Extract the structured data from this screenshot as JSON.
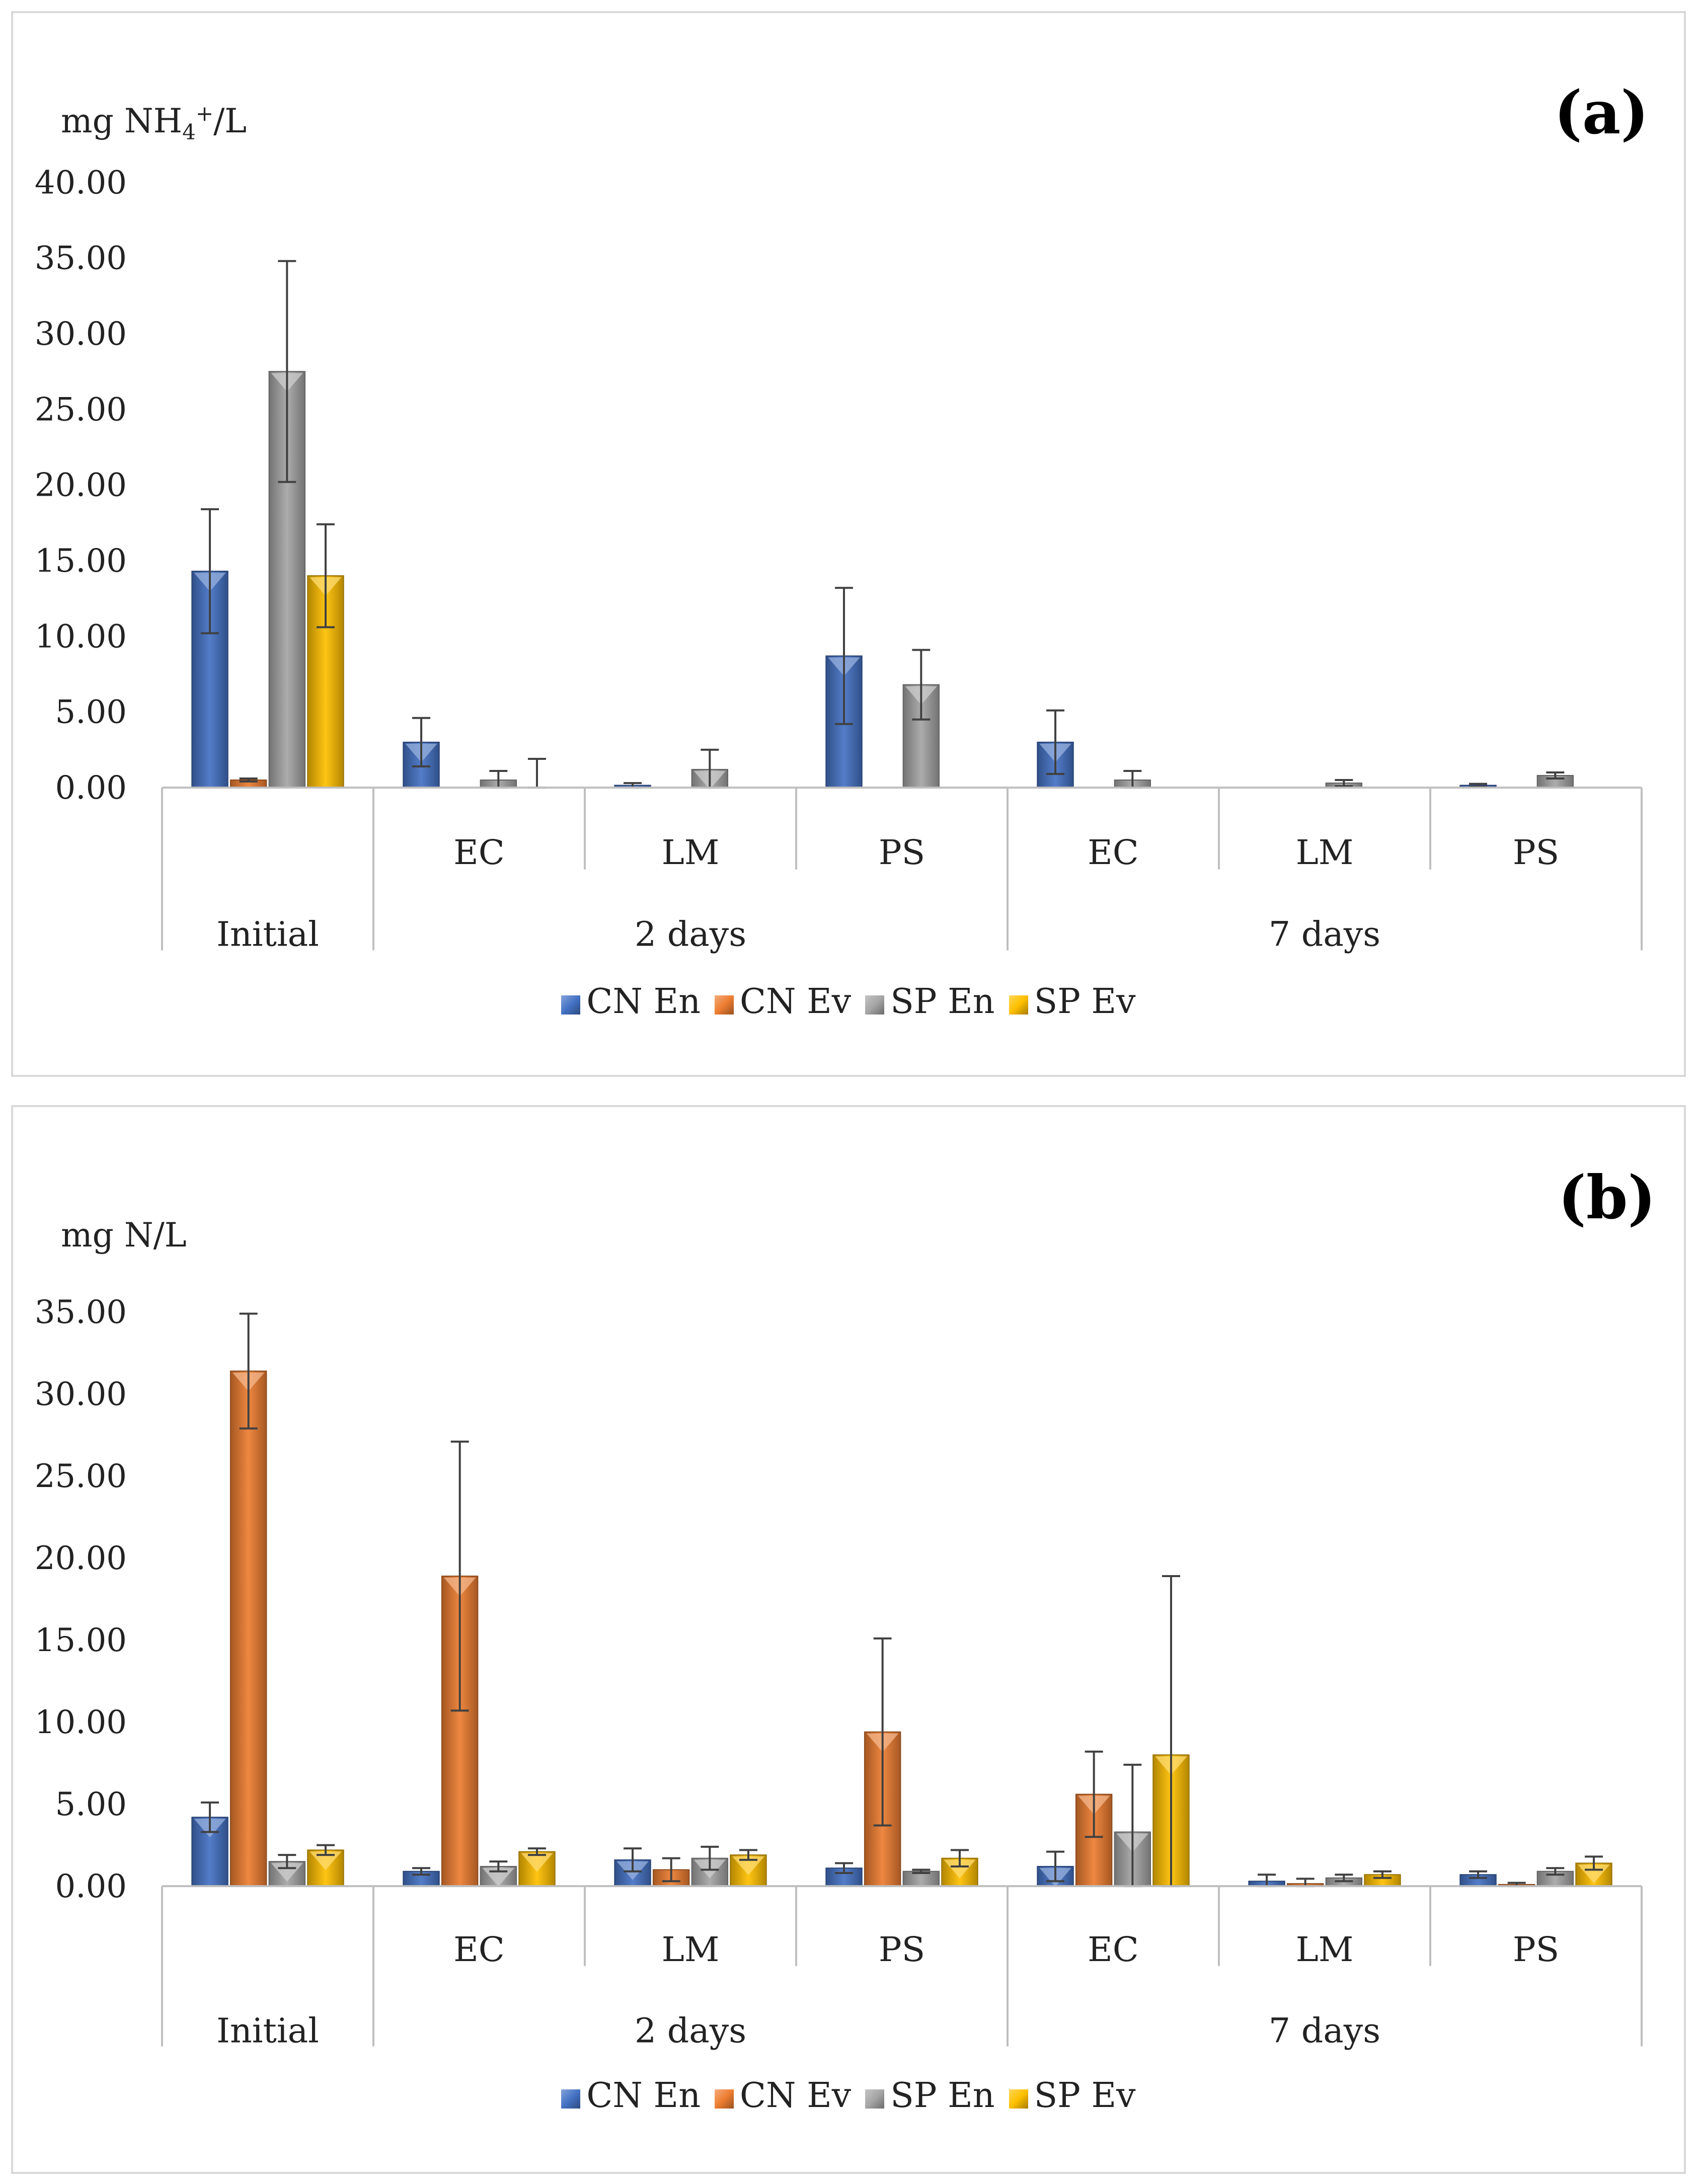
{
  "chart_data": [
    {
      "type": "bar",
      "panel_label": "(a)",
      "ylabel_main": "mg NH",
      "ylabel_sub": "4",
      "ylabel_sup": "+",
      "ylabel_tail": "/L",
      "ylim": [
        0,
        40
      ],
      "y_ticks": [
        "0.00",
        "5.00",
        "10.00",
        "15.00",
        "20.00",
        "25.00",
        "30.00",
        "35.00",
        "40.00"
      ],
      "categories": [
        "",
        "EC",
        "LM",
        "PS",
        "EC",
        "LM",
        "PS"
      ],
      "groups": [
        {
          "label": "Initial",
          "span": 1
        },
        {
          "label": "2 days",
          "span": 3
        },
        {
          "label": "7 days",
          "span": 3
        }
      ],
      "legend_position": "bottom",
      "series": [
        {
          "name": "CN En",
          "color": "#4472c4",
          "values": [
            14.3,
            3.0,
            0.15,
            8.7,
            3.0,
            0.0,
            0.15
          ],
          "errors": [
            4.1,
            1.6,
            0.15,
            4.5,
            2.1,
            0.0,
            0.1
          ]
        },
        {
          "name": "CN Ev",
          "color": "#ed7d31",
          "values": [
            0.5,
            0.0,
            0.0,
            0.0,
            0.0,
            0.0,
            0.0
          ],
          "errors": [
            0.1,
            0.0,
            0.0,
            0.0,
            0.0,
            0.0,
            0.0
          ]
        },
        {
          "name": "SP En",
          "color": "#a5a5a5",
          "values": [
            27.5,
            0.5,
            1.2,
            6.8,
            0.5,
            0.3,
            0.8
          ],
          "errors": [
            7.3,
            0.6,
            1.3,
            2.3,
            0.6,
            0.2,
            0.2
          ]
        },
        {
          "name": "SP Ev",
          "color": "#ffc000",
          "values": [
            14.0,
            0.0,
            0.0,
            0.0,
            0.0,
            0.0,
            0.0
          ],
          "errors": [
            3.4,
            1.9,
            0.0,
            0.0,
            0.0,
            0.0,
            0.0
          ]
        }
      ]
    },
    {
      "type": "bar",
      "panel_label": "(b)",
      "ylabel_main": "mg N/L",
      "ylabel_sub": "",
      "ylabel_sup": "",
      "ylabel_tail": "",
      "ylim": [
        0,
        35
      ],
      "y_ticks": [
        "0.00",
        "5.00",
        "10.00",
        "15.00",
        "20.00",
        "25.00",
        "30.00",
        "35.00"
      ],
      "categories": [
        "",
        "EC",
        "LM",
        "PS",
        "EC",
        "LM",
        "PS"
      ],
      "groups": [
        {
          "label": "Initial",
          "span": 1
        },
        {
          "label": "2 days",
          "span": 3
        },
        {
          "label": "7 days",
          "span": 3
        }
      ],
      "legend_position": "bottom",
      "series": [
        {
          "name": "CN En",
          "color": "#4472c4",
          "values": [
            4.2,
            0.9,
            1.6,
            1.1,
            1.2,
            0.3,
            0.7
          ],
          "errors": [
            0.9,
            0.2,
            0.7,
            0.3,
            0.9,
            0.4,
            0.2
          ]
        },
        {
          "name": "CN Ev",
          "color": "#ed7d31",
          "values": [
            31.4,
            18.9,
            1.0,
            9.4,
            5.6,
            0.15,
            0.1
          ],
          "errors": [
            3.5,
            8.2,
            0.7,
            5.7,
            2.6,
            0.3,
            0.1
          ]
        },
        {
          "name": "SP En",
          "color": "#a5a5a5",
          "values": [
            1.5,
            1.2,
            1.7,
            0.9,
            3.3,
            0.5,
            0.9
          ],
          "errors": [
            0.4,
            0.3,
            0.7,
            0.1,
            4.1,
            0.2,
            0.2
          ]
        },
        {
          "name": "SP Ev",
          "color": "#ffc000",
          "values": [
            2.2,
            2.1,
            1.9,
            1.7,
            8.0,
            0.7,
            1.4
          ],
          "errors": [
            0.3,
            0.2,
            0.3,
            0.5,
            10.9,
            0.2,
            0.4
          ]
        }
      ]
    }
  ]
}
